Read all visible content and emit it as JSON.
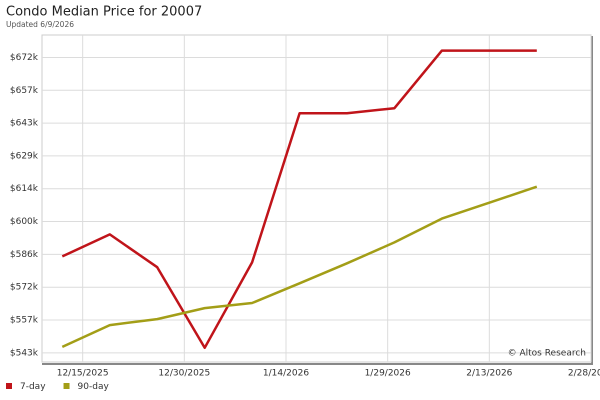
{
  "chart_data": {
    "type": "line",
    "title": "Condo Median Price for 20007",
    "subtitle": "Updated 6/9/2026",
    "annotation": "© Altos Research",
    "x": [
      "2025-12-12",
      "2025-12-19",
      "2025-12-26",
      "2026-01-02",
      "2026-01-09",
      "2026-01-16",
      "2026-01-23",
      "2026-01-30",
      "2026-02-06",
      "2026-02-13",
      "2026-02-20"
    ],
    "xlim": [
      "2025-12-09",
      "2026-02-28"
    ],
    "xticks": [
      {
        "value": "2025-12-15",
        "label": "12/15/2025"
      },
      {
        "value": "2025-12-30",
        "label": "12/30/2025"
      },
      {
        "value": "2026-01-14",
        "label": "1/14/2026"
      },
      {
        "value": "2026-01-29",
        "label": "1/29/2026"
      },
      {
        "value": "2026-02-13",
        "label": "2/13/2026"
      },
      {
        "value": "2026-02-28",
        "label": "2/28/2026"
      }
    ],
    "ylim": [
      539,
      681.5
    ],
    "yticks": [
      {
        "value": 543,
        "label": "$543k"
      },
      {
        "value": 557.3,
        "label": "$557k"
      },
      {
        "value": 571.6,
        "label": "$572k"
      },
      {
        "value": 585.9,
        "label": "$586k"
      },
      {
        "value": 600.2,
        "label": "$600k"
      },
      {
        "value": 614.5,
        "label": "$614k"
      },
      {
        "value": 628.8,
        "label": "$629k"
      },
      {
        "value": 643.1,
        "label": "$643k"
      },
      {
        "value": 657.4,
        "label": "$657k"
      },
      {
        "value": 671.7,
        "label": "$672k"
      }
    ],
    "grid": true,
    "series": [
      {
        "name": "7-day",
        "color": "#c0141a",
        "values": [
          585.0,
          594.6,
          580.3,
          545.2,
          582.4,
          647.4,
          647.4,
          649.6,
          674.7,
          674.7,
          674.7
        ]
      },
      {
        "name": "90-day",
        "color": "#a39e17",
        "values": [
          545.6,
          555.1,
          557.7,
          562.5,
          564.7,
          573.3,
          582.0,
          591.1,
          601.5,
          608.4,
          615.4
        ]
      }
    ]
  }
}
